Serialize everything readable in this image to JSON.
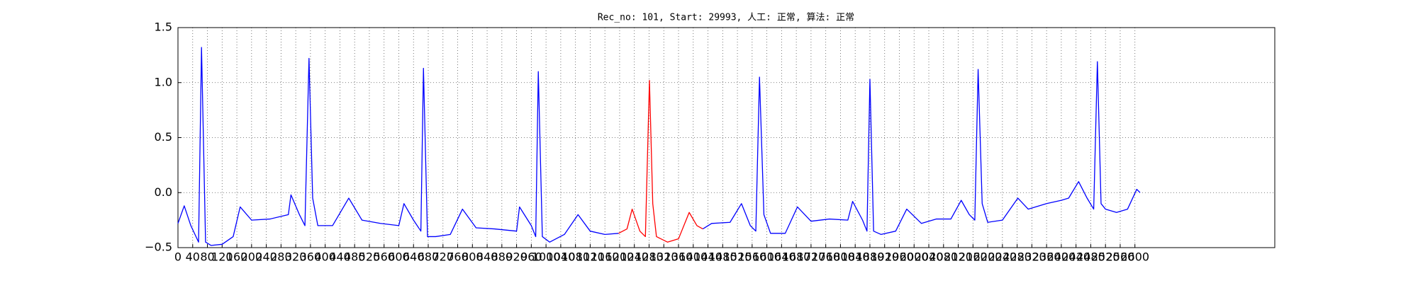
{
  "chart_data": {
    "type": "line",
    "title": "Rec_no: 101, Start: 29993, 人工: 正常, 算法: 正常",
    "xlim": [
      0,
      2980
    ],
    "ylim": [
      -0.5,
      1.5
    ],
    "xticks": [
      0,
      40,
      80,
      120,
      160,
      200,
      240,
      280,
      320,
      360,
      400,
      440,
      480,
      520,
      560,
      600,
      640,
      680,
      720,
      760,
      800,
      840,
      880,
      920,
      960,
      1000,
      1040,
      1080,
      1120,
      1160,
      1200,
      1240,
      1280,
      1320,
      1360,
      1400,
      1440,
      1480,
      1520,
      1560,
      1600,
      1640,
      1680,
      1720,
      1760,
      1800,
      1840,
      1880,
      1920,
      1960,
      2000,
      2040,
      2080,
      2120,
      2160,
      2200,
      2240,
      2280,
      2320,
      2360,
      2400,
      2440,
      2480,
      2520,
      2560,
      2600
    ],
    "yticks": [
      {
        "value": -0.5,
        "label": "−0.5"
      },
      {
        "value": 0,
        "label": "0.0"
      },
      0.5,
      {
        "value": 1,
        "label": "1.0"
      },
      1.5
    ],
    "grid": true,
    "series": [
      {
        "color": "#0000ff",
        "x": [
          0,
          17,
          35,
          56,
          64,
          75,
          90,
          120,
          150,
          169,
          200,
          250,
          300,
          307,
          330,
          345,
          356,
          366,
          380,
          420,
          464,
          500,
          550,
          600,
          614,
          640,
          660,
          667,
          678,
          700,
          740,
          773,
          810,
          860,
          920,
          928,
          960,
          972,
          979,
          990,
          1010,
          1050,
          1087,
          1120,
          1160,
          1197,
          null,
          1426,
          1450,
          1500,
          1531,
          1555,
          1570,
          1580,
          1592,
          1610,
          1650,
          1683,
          1720,
          1770,
          1820,
          1833,
          1860,
          1872,
          1880,
          1890,
          1910,
          1950,
          1980,
          2020,
          2060,
          2100,
          2128,
          2150,
          2165,
          2174,
          2185,
          2200,
          2240,
          2282,
          2310,
          2360,
          2400,
          2420,
          2447,
          2470,
          2488,
          2498,
          2508,
          2520,
          2550,
          2580,
          2605,
          2614
        ],
        "values": [
          -0.28,
          -0.12,
          -0.3,
          -0.45,
          1.32,
          -0.45,
          -0.48,
          -0.47,
          -0.4,
          -0.13,
          -0.25,
          -0.24,
          -0.2,
          -0.02,
          -0.2,
          -0.3,
          1.22,
          -0.05,
          -0.3,
          -0.3,
          -0.05,
          -0.25,
          -0.28,
          -0.3,
          -0.1,
          -0.25,
          -0.35,
          1.13,
          -0.4,
          -0.4,
          -0.38,
          -0.15,
          -0.32,
          -0.33,
          -0.35,
          -0.13,
          -0.3,
          -0.4,
          1.1,
          -0.4,
          -0.45,
          -0.38,
          -0.2,
          -0.35,
          -0.38,
          -0.37,
          null,
          -0.33,
          -0.28,
          -0.27,
          -0.1,
          -0.3,
          -0.35,
          1.05,
          -0.2,
          -0.37,
          -0.37,
          -0.13,
          -0.26,
          -0.24,
          -0.25,
          -0.08,
          -0.25,
          -0.35,
          1.03,
          -0.35,
          -0.38,
          -0.35,
          -0.15,
          -0.28,
          -0.24,
          -0.24,
          -0.07,
          -0.2,
          -0.25,
          1.12,
          -0.1,
          -0.27,
          -0.25,
          -0.05,
          -0.15,
          -0.1,
          -0.07,
          -0.05,
          0.1,
          -0.05,
          -0.15,
          1.19,
          -0.1,
          -0.15,
          -0.18,
          -0.15,
          0.03,
          0.0
        ]
      },
      {
        "color": "#ff0000",
        "x": [
          1197,
          1220,
          1234,
          1255,
          1270,
          1281,
          1290,
          1300,
          1330,
          1360,
          1389,
          1410,
          1426
        ],
        "values": [
          -0.37,
          -0.33,
          -0.15,
          -0.35,
          -0.4,
          1.02,
          -0.1,
          -0.4,
          -0.45,
          -0.42,
          -0.18,
          -0.3,
          -0.33
        ]
      }
    ]
  }
}
